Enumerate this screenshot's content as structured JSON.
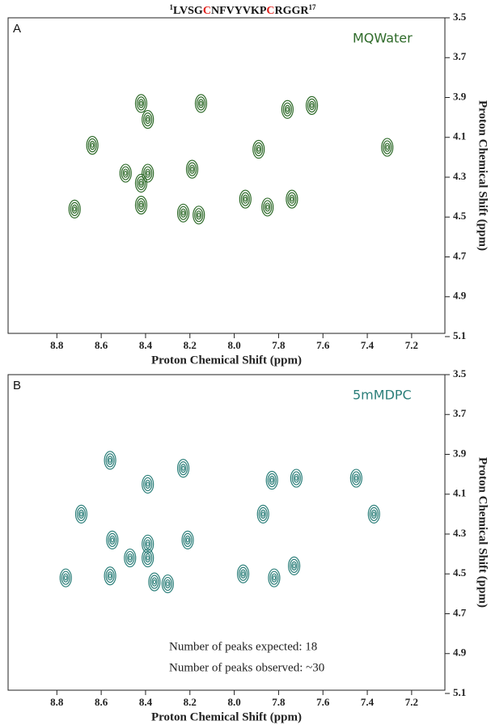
{
  "figure_title": {
    "start": "1",
    "parts": [
      "LVSG",
      "C",
      "NFVYVKP",
      "C",
      "RGGR"
    ],
    "end": "17"
  },
  "chart_data": [
    {
      "type": "scatter",
      "panel_label": "A",
      "label": "MQWater",
      "color": "#2f6b2a",
      "xlabel": "Proton Chemical Shift (ppm)",
      "ylabel": "Proton Chemical Shift (ppm)",
      "xlim": [
        9.02,
        7.05
      ],
      "ylim": [
        5.1,
        3.5
      ],
      "xticks": [
        8.8,
        8.6,
        8.4,
        8.2,
        {
          "value": 8,
          "label": "8.0"
        },
        7.8,
        7.6,
        7.4,
        7.2
      ],
      "yticks": [
        3.5,
        3.7,
        3.9,
        4.1,
        4.3,
        4.5,
        4.7,
        4.9,
        5.1
      ],
      "x": [
        8.42,
        8.15,
        8.39,
        7.76,
        7.65,
        8.64,
        7.89,
        7.31,
        8.39,
        8.19,
        8.42,
        8.42,
        7.95,
        7.85,
        7.74,
        8.72,
        8.23,
        8.16,
        8.49
      ],
      "y": [
        3.93,
        3.93,
        4.01,
        3.96,
        3.94,
        4.14,
        4.16,
        4.15,
        4.28,
        4.26,
        4.33,
        4.44,
        4.41,
        4.45,
        4.41,
        4.46,
        4.48,
        4.49,
        4.28
      ]
    },
    {
      "type": "scatter",
      "panel_label": "B",
      "label": "5mMDPC",
      "color": "#2c7f7a",
      "xlabel": "Proton Chemical Shift (ppm)",
      "ylabel": "Proton Chemical Shift (ppm)",
      "xlim": [
        9.02,
        7.05
      ],
      "ylim": [
        5.1,
        3.5
      ],
      "xticks": [
        8.8,
        8.6,
        8.4,
        8.2,
        {
          "value": 8,
          "label": "8.0"
        },
        7.8,
        7.6,
        7.4,
        7.2
      ],
      "yticks": [
        3.5,
        3.7,
        3.9,
        4.1,
        4.3,
        4.5,
        4.7,
        4.9,
        5.1
      ],
      "annotations": [
        "Number of peaks expected: 18",
        "Number of peaks observed: ~30"
      ],
      "x": [
        8.56,
        8.23,
        8.39,
        7.83,
        7.72,
        8.69,
        7.87,
        7.37,
        8.21,
        8.55,
        8.39,
        8.47,
        8.39,
        7.96,
        7.82,
        7.73,
        8.76,
        8.56,
        8.36,
        8.3,
        7.45
      ],
      "y": [
        3.93,
        3.97,
        4.05,
        4.03,
        4.02,
        4.2,
        4.2,
        4.2,
        4.33,
        4.33,
        4.35,
        4.42,
        4.42,
        4.5,
        4.52,
        4.46,
        4.52,
        4.51,
        4.54,
        4.55,
        4.02
      ]
    }
  ]
}
